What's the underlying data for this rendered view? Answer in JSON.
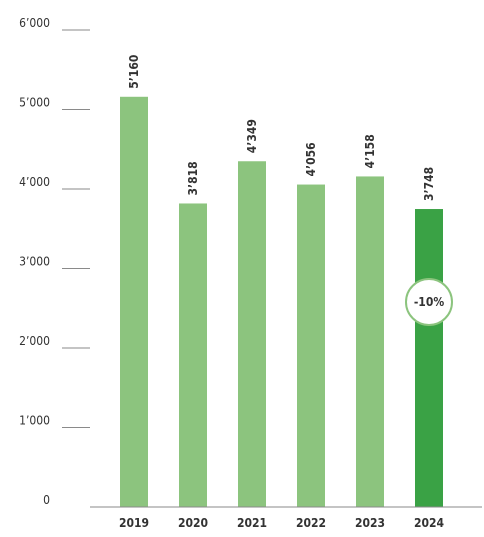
{
  "chart_data": {
    "type": "bar",
    "categories": [
      "2019",
      "2020",
      "2021",
      "2022",
      "2023",
      "2024"
    ],
    "values": [
      5160,
      3818,
      4349,
      4056,
      4158,
      3748
    ],
    "value_labels": [
      "5’160",
      "3’818",
      "4’349",
      "4’056",
      "4’158",
      "3’748"
    ],
    "ylim": [
      0,
      6000
    ],
    "yticks": [
      0,
      1000,
      2000,
      3000,
      4000,
      5000,
      6000
    ],
    "ytick_labels": [
      "0",
      "1’000",
      "2’000",
      "3’000",
      "4’000",
      "5’000",
      "6’000"
    ],
    "highlight_index": 5,
    "colors": {
      "bar": "#8cc47e",
      "highlight_bar": "#3aa245",
      "badge_border": "#8cc47e",
      "badge_fill": "#ffffff"
    },
    "annotation": {
      "text": "-10%",
      "category": "2024"
    },
    "title": "",
    "xlabel": "",
    "ylabel": ""
  }
}
